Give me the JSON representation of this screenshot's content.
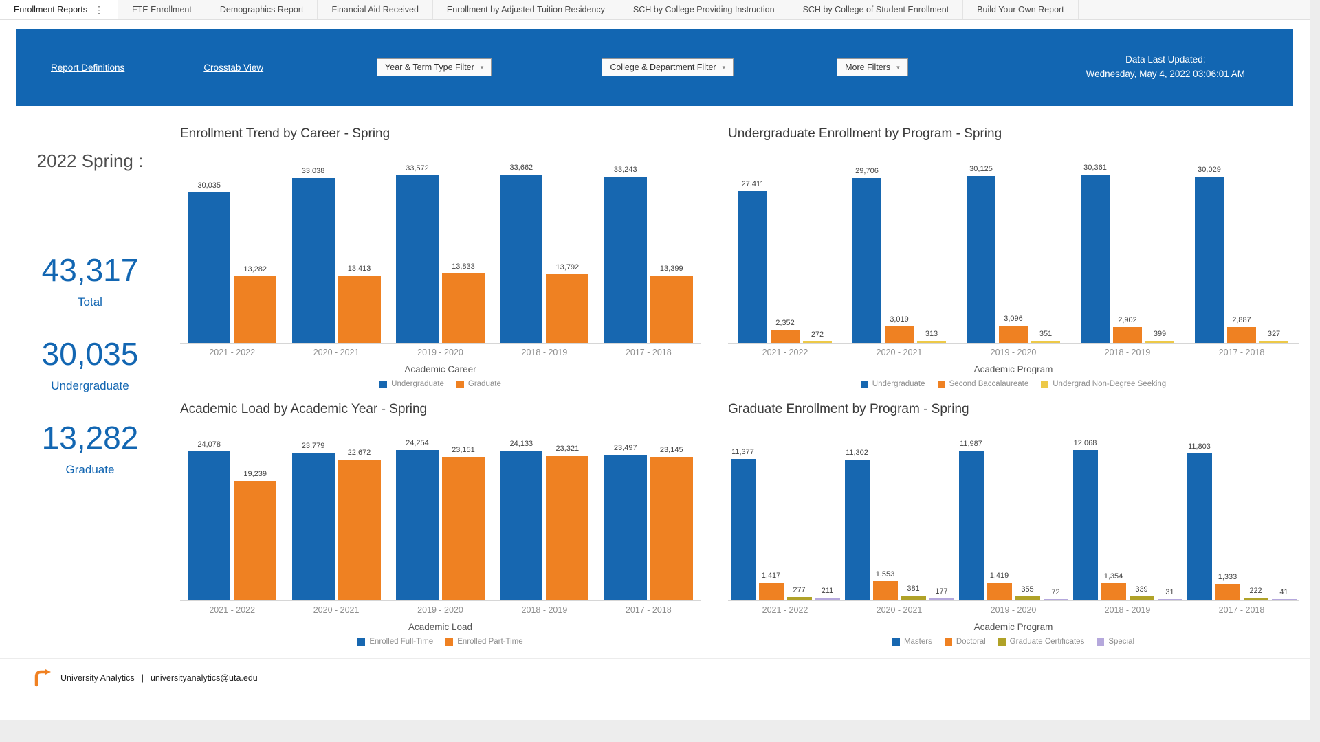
{
  "tabs": [
    {
      "label": "Enrollment Reports",
      "active": true
    },
    {
      "label": "FTE Enrollment",
      "active": false
    },
    {
      "label": "Demographics Report",
      "active": false
    },
    {
      "label": "Financial Aid Received",
      "active": false
    },
    {
      "label": "Enrollment by Adjusted Tuition Residency",
      "active": false
    },
    {
      "label": "SCH by College Providing Instruction",
      "active": false
    },
    {
      "label": "SCH by College of Student Enrollment",
      "active": false
    },
    {
      "label": "Build Your Own Report",
      "active": false
    }
  ],
  "header": {
    "links": [
      {
        "label": "Report Definitions"
      },
      {
        "label": "Crosstab View"
      }
    ],
    "filters": [
      {
        "label": "Year & Term Type Filter"
      },
      {
        "label": "College & Department Filter"
      },
      {
        "label": "More Filters"
      }
    ],
    "updated_label": "Data Last Updated:",
    "updated_value": "Wednesday, May 4, 2022 03:06:01 AM"
  },
  "stats": {
    "term": "2022 Spring :",
    "items": [
      {
        "value": "43,317",
        "label": "Total"
      },
      {
        "value": "30,035",
        "label": "Undergraduate"
      },
      {
        "value": "13,282",
        "label": "Graduate"
      }
    ]
  },
  "chart_data": [
    {
      "type": "bar",
      "title": "Enrollment Trend by Career - Spring",
      "xlabel": "Academic Career",
      "legend_position": "bottom",
      "grid": false,
      "categories": [
        "2021 - 2022",
        "2020 - 2021",
        "2019 - 2020",
        "2018 - 2019",
        "2017 - 2018"
      ],
      "series": [
        {
          "name": "Undergraduate",
          "color": "#1767b0",
          "values": [
            30035,
            33038,
            33572,
            33662,
            33243
          ]
        },
        {
          "name": "Graduate",
          "color": "#ef8122",
          "values": [
            13282,
            13413,
            13833,
            13792,
            13399
          ]
        }
      ]
    },
    {
      "type": "bar",
      "title": "Undergraduate Enrollment by Program - Spring",
      "xlabel": "Academic Program",
      "legend_position": "bottom",
      "grid": false,
      "categories": [
        "2021 - 2022",
        "2020 - 2021",
        "2019 - 2020",
        "2018 - 2019",
        "2017 - 2018"
      ],
      "series": [
        {
          "name": "Undergraduate",
          "color": "#1767b0",
          "values": [
            27411,
            29706,
            30125,
            30361,
            30029
          ]
        },
        {
          "name": "Second Baccalaureate",
          "color": "#ef8122",
          "values": [
            2352,
            3019,
            3096,
            2902,
            2887
          ]
        },
        {
          "name": "Undergrad Non-Degree Seeking",
          "color": "#edc948",
          "values": [
            272,
            313,
            351,
            399,
            327
          ]
        }
      ]
    },
    {
      "type": "bar",
      "title": "Academic Load by Academic Year - Spring",
      "xlabel": "Academic Load",
      "legend_position": "bottom",
      "grid": false,
      "categories": [
        "2021 - 2022",
        "2020 - 2021",
        "2019 - 2020",
        "2018 - 2019",
        "2017 - 2018"
      ],
      "series": [
        {
          "name": "Enrolled Full-Time",
          "color": "#1767b0",
          "values": [
            24078,
            23779,
            24254,
            24133,
            23497
          ]
        },
        {
          "name": "Enrolled Part-Time",
          "color": "#ef8122",
          "values": [
            19239,
            22672,
            23151,
            23321,
            23145
          ]
        }
      ]
    },
    {
      "type": "bar",
      "title": "Graduate Enrollment by Program - Spring",
      "xlabel": "Academic Program",
      "legend_position": "bottom",
      "grid": false,
      "categories": [
        "2021 - 2022",
        "2020 - 2021",
        "2019 - 2020",
        "2018 - 2019",
        "2017 - 2018"
      ],
      "series": [
        {
          "name": "Masters",
          "color": "#1767b0",
          "values": [
            11377,
            11302,
            11987,
            12068,
            11803
          ]
        },
        {
          "name": "Doctoral",
          "color": "#ef8122",
          "values": [
            1417,
            1553,
            1419,
            1354,
            1333
          ]
        },
        {
          "name": "Graduate Certificates",
          "color": "#b0a228",
          "values": [
            277,
            381,
            355,
            339,
            222
          ]
        },
        {
          "name": "Special",
          "color": "#b5a8dc",
          "values": [
            211,
            177,
            72,
            31,
            41
          ]
        }
      ]
    }
  ],
  "footer": {
    "brand": "University Analytics",
    "separator": "|",
    "email": "universityanalytics@uta.edu"
  },
  "colors": {
    "banner": "#1266b2",
    "primary_blue": "#1767b0",
    "orange": "#ef8122",
    "yellow": "#edc948",
    "olive": "#b0a228",
    "purple": "#b5a8dc"
  }
}
